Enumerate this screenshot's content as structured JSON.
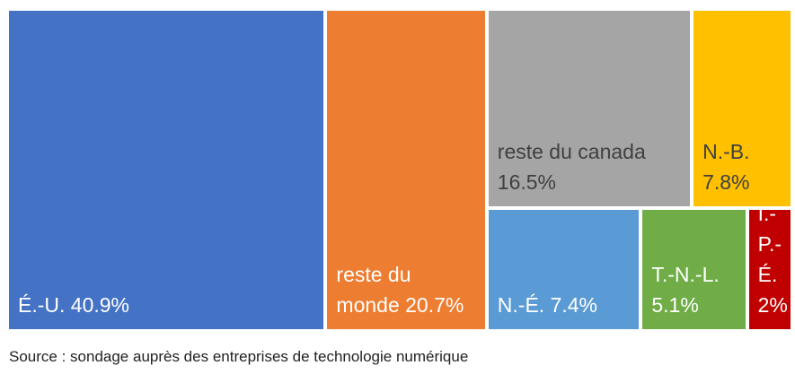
{
  "chart_data": {
    "type": "treemap",
    "categories": [
      "É.-U.",
      "reste du monde",
      "reste du canada",
      "N.-B.",
      "N.-É.",
      "T.-N.-L.",
      "Î.-P.-É."
    ],
    "values": [
      40.9,
      20.7,
      16.5,
      7.8,
      7.4,
      5.1,
      2
    ],
    "value_labels": [
      "40.9%",
      "20.7%",
      "16.5%",
      "7.8%",
      "7.4%",
      "5.1%",
      "2%"
    ],
    "colors": [
      "#4472c4",
      "#ed7d31",
      "#a5a5a5",
      "#ffc000",
      "#5b9bd5",
      "#70ad47",
      "#c00000"
    ],
    "source": "Source : sondage auprès des entreprises de technologie numérique"
  }
}
